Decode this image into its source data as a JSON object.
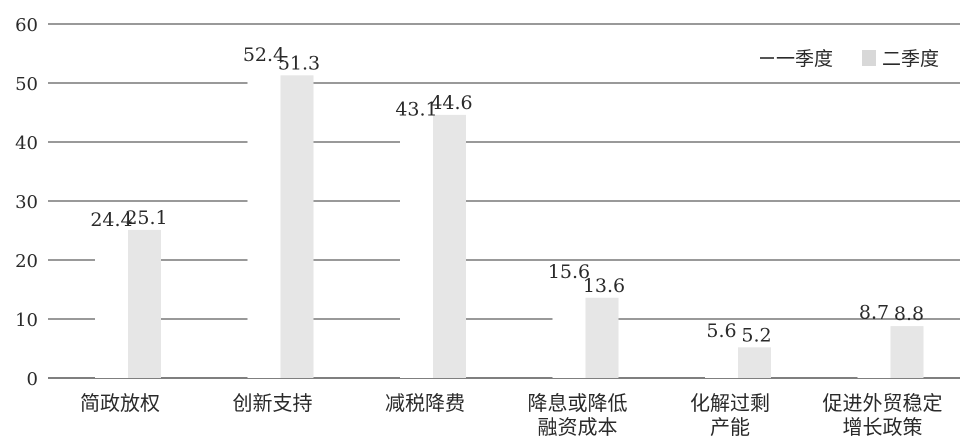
{
  "chart_data": {
    "type": "bar",
    "title": "",
    "xlabel": "",
    "ylabel": "",
    "ylim": [
      0,
      60
    ],
    "yticks": [
      0,
      10,
      20,
      30,
      40,
      50,
      60
    ],
    "grid": true,
    "legend_position": "top-right",
    "categories": [
      [
        "简政放权"
      ],
      [
        "创新支持"
      ],
      [
        "减税降费"
      ],
      [
        "降息或降低",
        "融资成本"
      ],
      [
        "化解过剩",
        "产能"
      ],
      [
        "促进外贸稳定",
        "增长政策"
      ]
    ],
    "series": [
      {
        "name": "一季度",
        "values": [
          24.4,
          52.4,
          43.1,
          15.6,
          5.6,
          8.7
        ],
        "color": "#ffffff"
      },
      {
        "name": "二季度",
        "values": [
          25.1,
          51.3,
          44.6,
          13.6,
          5.2,
          8.8
        ],
        "color": "#e6e6e6"
      }
    ]
  }
}
